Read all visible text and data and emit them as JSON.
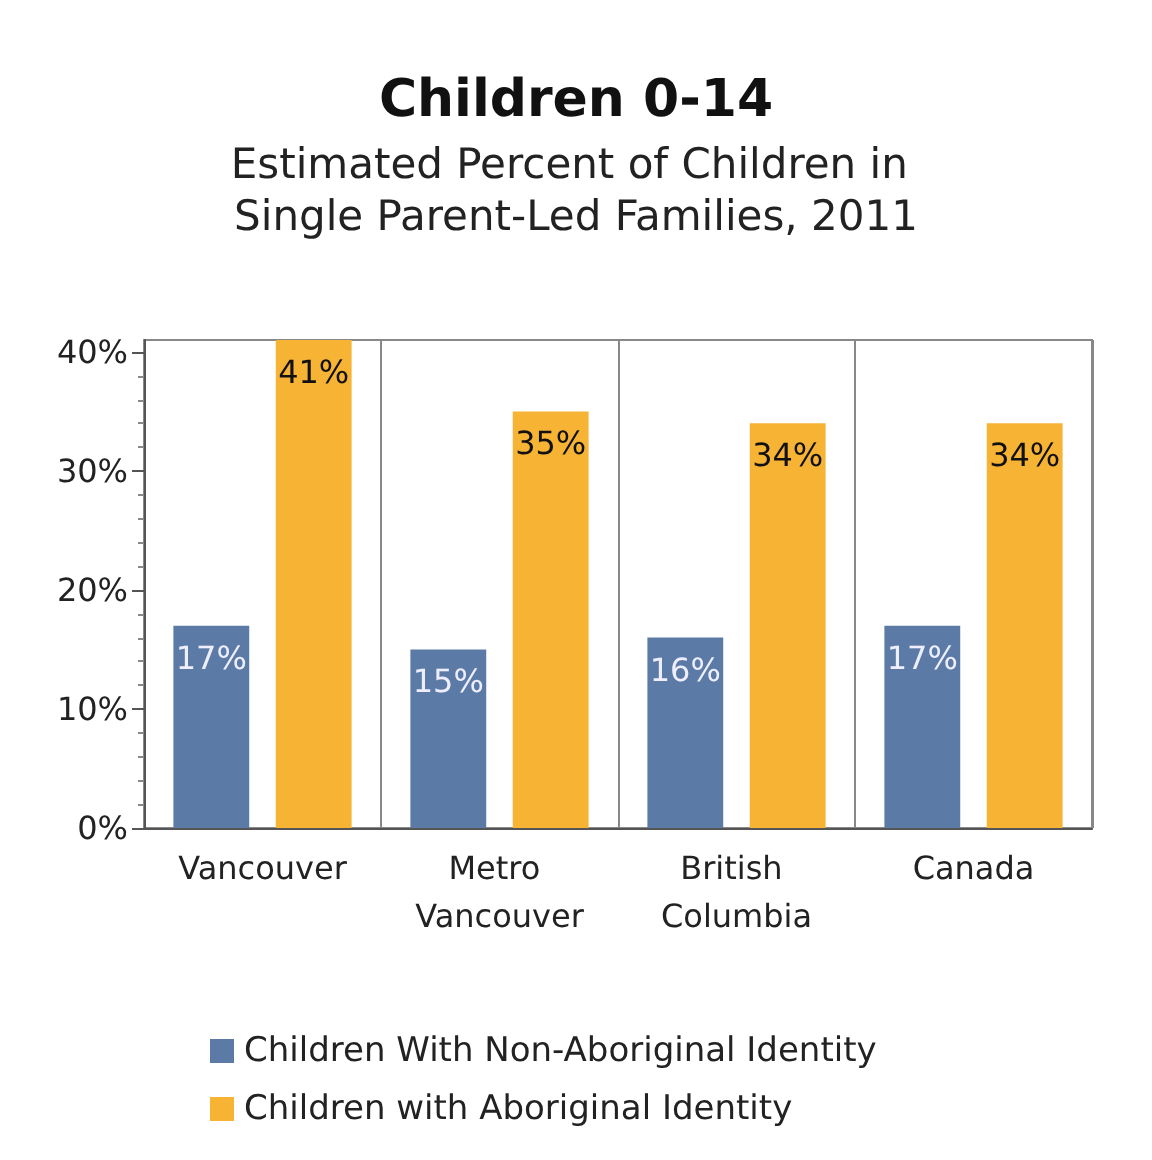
{
  "chart_data": {
    "type": "bar",
    "title": "Children 0-14",
    "subtitle": "Estimated Percent of Children in Single Parent-Led Families, 2011",
    "categories": [
      "Vancouver",
      "Metro Vancouver",
      "British Columbia",
      "Canada"
    ],
    "series": [
      {
        "name": "Children With Non-Aboriginal Identity",
        "color": "#5b7ba6",
        "values": [
          17,
          15,
          16,
          17
        ],
        "value_labels": [
          "17%",
          "15%",
          "16%",
          "17%"
        ]
      },
      {
        "name": "Children with Aboriginal Identity",
        "color": "#f7b334",
        "values": [
          41,
          35,
          34,
          34
        ],
        "value_labels": [
          "41%",
          "35%",
          "34%",
          "34%"
        ]
      }
    ],
    "ylim": [
      0,
      41
    ],
    "yticks": [
      {
        "value": 0,
        "label": "0%"
      },
      {
        "value": 10,
        "label": "10%"
      },
      {
        "value": 20,
        "label": "20%"
      },
      {
        "value": 30,
        "label": "30%"
      },
      {
        "value": 40,
        "label": "40%"
      }
    ],
    "grid": "x",
    "legend": "bottom"
  }
}
